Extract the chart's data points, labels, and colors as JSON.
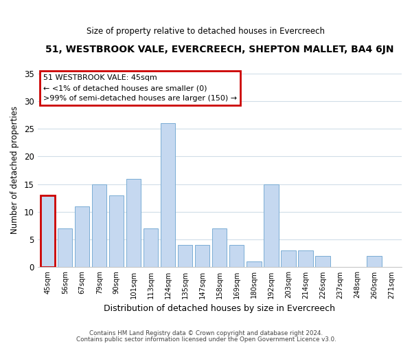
{
  "title_line1": "51, WESTBROOK VALE, EVERCREECH, SHEPTON MALLET, BA4 6JN",
  "title_line2": "Size of property relative to detached houses in Evercreech",
  "xlabel": "Distribution of detached houses by size in Evercreech",
  "ylabel": "Number of detached properties",
  "bar_labels": [
    "45sqm",
    "56sqm",
    "67sqm",
    "79sqm",
    "90sqm",
    "101sqm",
    "113sqm",
    "124sqm",
    "135sqm",
    "147sqm",
    "158sqm",
    "169sqm",
    "180sqm",
    "192sqm",
    "203sqm",
    "214sqm",
    "226sqm",
    "237sqm",
    "248sqm",
    "260sqm",
    "271sqm"
  ],
  "bar_values": [
    13,
    7,
    11,
    15,
    13,
    16,
    7,
    26,
    4,
    4,
    7,
    4,
    1,
    15,
    3,
    3,
    2,
    0,
    0,
    2,
    0
  ],
  "bar_color": "#c5d8f0",
  "bar_edge_color": "#7aadd4",
  "highlight_index": 0,
  "highlight_edge_color": "#cc0000",
  "ylim": [
    0,
    35
  ],
  "yticks": [
    0,
    5,
    10,
    15,
    20,
    25,
    30,
    35
  ],
  "annotation_title": "51 WESTBROOK VALE: 45sqm",
  "annotation_line1": "← <1% of detached houses are smaller (0)",
  "annotation_line2": ">99% of semi-detached houses are larger (150) →",
  "annotation_box_color": "#ffffff",
  "annotation_border_color": "#cc0000",
  "footer_line1": "Contains HM Land Registry data © Crown copyright and database right 2024.",
  "footer_line2": "Contains public sector information licensed under the Open Government Licence v3.0.",
  "bg_color": "#ffffff",
  "grid_color": "#d0dde8"
}
